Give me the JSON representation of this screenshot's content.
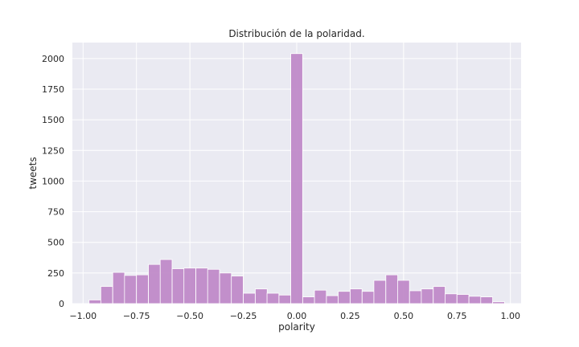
{
  "chart_data": {
    "type": "bar",
    "title": "Distribución de la polaridad.",
    "xlabel": "polarity",
    "ylabel": "tweets",
    "xlim": [
      -1.05,
      1.05
    ],
    "ylim": [
      0,
      2130
    ],
    "bin_width": 0.0556,
    "xticks": [
      -1.0,
      -0.75,
      -0.5,
      -0.25,
      0.0,
      0.25,
      0.5,
      0.75,
      1.0
    ],
    "xtick_labels": [
      "−1.00",
      "−0.75",
      "−0.50",
      "−0.25",
      "0.00",
      "0.25",
      "0.50",
      "0.75",
      "1.00"
    ],
    "yticks": [
      0,
      250,
      500,
      750,
      1000,
      1250,
      1500,
      1750,
      2000
    ],
    "ytick_labels": [
      "0",
      "250",
      "500",
      "750",
      "1000",
      "1250",
      "1500",
      "1750",
      "2000"
    ],
    "grid": true,
    "bar_color": "#c08ac8",
    "background_color": "#eaeaf2",
    "bins_start": [
      -0.972,
      -0.917,
      -0.861,
      -0.806,
      -0.75,
      -0.694,
      -0.639,
      -0.583,
      -0.528,
      -0.472,
      -0.417,
      -0.361,
      -0.306,
      -0.25,
      -0.194,
      -0.139,
      -0.083,
      -0.028,
      0.028,
      0.083,
      0.139,
      0.194,
      0.25,
      0.306,
      0.361,
      0.417,
      0.472,
      0.528,
      0.583,
      0.639,
      0.694,
      0.75,
      0.806,
      0.861,
      0.917
    ],
    "values": [
      30,
      140,
      255,
      230,
      235,
      320,
      360,
      285,
      290,
      290,
      280,
      250,
      225,
      85,
      120,
      85,
      70,
      2040,
      55,
      110,
      65,
      100,
      120,
      100,
      190,
      235,
      190,
      105,
      120,
      140,
      80,
      75,
      60,
      55,
      15
    ]
  }
}
